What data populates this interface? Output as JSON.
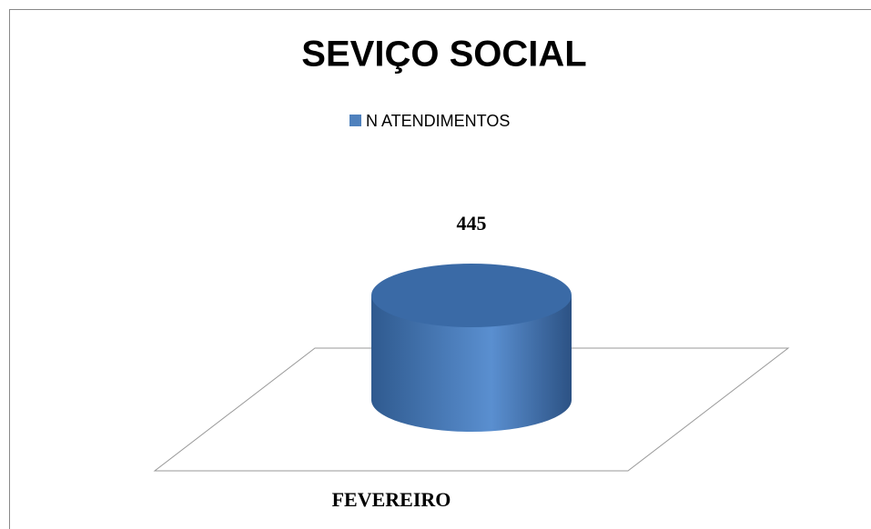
{
  "chart_data": {
    "type": "cylinder-bar",
    "title": "SEVIÇO SOCIAL",
    "categories": [
      "FEVEREIRO"
    ],
    "series": [
      {
        "name": "N ATENDIMENTOS",
        "color": "#4f81bd",
        "values": [
          445
        ]
      }
    ]
  }
}
